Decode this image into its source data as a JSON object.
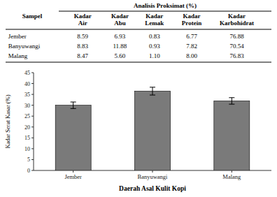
{
  "chart_data": [
    {
      "type": "table",
      "title": "Analisis Proksimat (%)",
      "columns": [
        "Sampel",
        "Kadar\nAir",
        "Kadar\nAbu",
        "Kadar\nLemak",
        "Kadar\nProtein",
        "Kadar\nKarbohidrat"
      ],
      "rows": [
        [
          "Jember",
          "8.59",
          "6.93",
          "0.83",
          "6.77",
          "76.88"
        ],
        [
          "Banyuwangi",
          "8.83",
          "11.88",
          "0.93",
          "7.82",
          "70.54"
        ],
        [
          "Malang",
          "8.47",
          "5.60",
          "1.10",
          "8.00",
          "76.83"
        ]
      ]
    },
    {
      "type": "bar",
      "categories": [
        "Jember",
        "Banyuwangi",
        "Malang"
      ],
      "values": [
        30.0,
        36.5,
        32.0
      ],
      "errors": [
        1.5,
        1.8,
        1.5
      ],
      "color": "#7a7a7a",
      "xlabel": "Daerah Asal Kulit Kopi",
      "ylabel": "Kadar Serat Kasar (%)",
      "ylim": [
        0,
        45
      ],
      "yticks": [
        0,
        5,
        10,
        15,
        20,
        25,
        30,
        35,
        40,
        45
      ]
    }
  ]
}
